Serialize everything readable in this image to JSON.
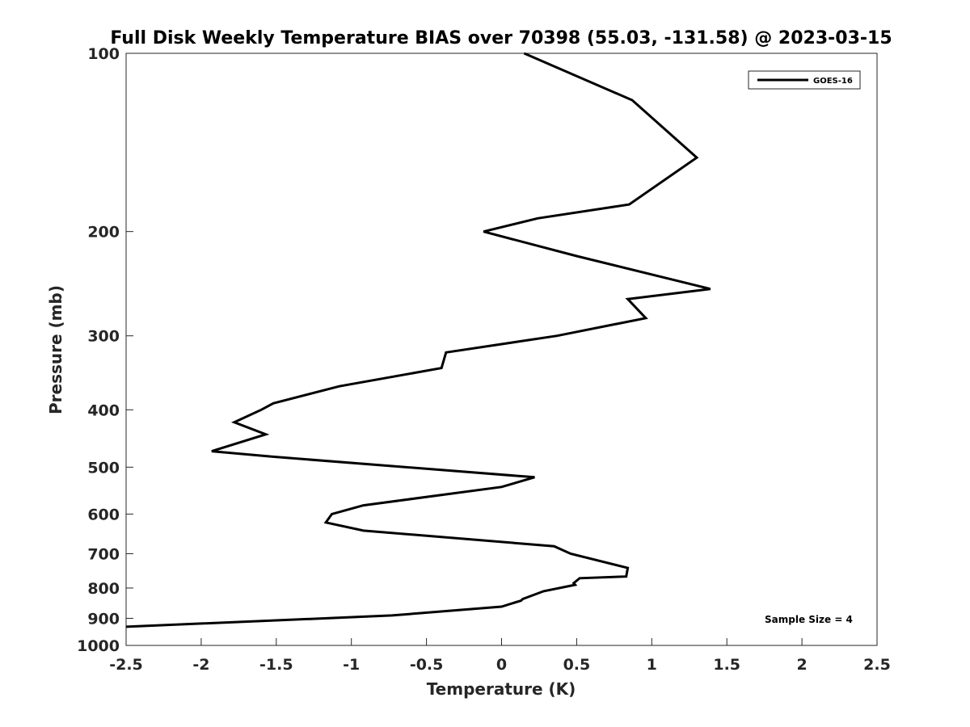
{
  "chart_data": {
    "type": "line",
    "title": "Full Disk Weekly Temperature BIAS over 70398 (55.03, -131.58) @ 2023-03-15",
    "xlabel": "Temperature (K)",
    "ylabel": "Pressure (mb)",
    "xlim": [
      -2.5,
      2.5
    ],
    "ylim": [
      100,
      1000
    ],
    "y_scale": "log",
    "y_reversed": true,
    "x_ticks": [
      -2.5,
      -2,
      -1.5,
      -1,
      -0.5,
      0,
      0.5,
      1,
      1.5,
      2,
      2.5
    ],
    "x_tick_labels": [
      "-2.5",
      "-2",
      "-1.5",
      "-1",
      "-0.5",
      "0",
      "0.5",
      "1",
      "1.5",
      "2",
      "2.5"
    ],
    "y_ticks": [
      100,
      200,
      300,
      400,
      500,
      600,
      700,
      800,
      900,
      1000
    ],
    "y_tick_labels": [
      "100",
      "200",
      "300",
      "400",
      "500",
      "600",
      "700",
      "800",
      "900",
      "1000"
    ],
    "grid": false,
    "legend_position": "top-right",
    "annotation": "Sample Size = 4",
    "series": [
      {
        "name": "GOES-16",
        "color": "#000000",
        "x": [
          0.15,
          0.87,
          1.3,
          0.85,
          0.24,
          -0.12,
          0.5,
          1.39,
          0.84,
          0.96,
          0.37,
          -0.37,
          -0.4,
          -1.08,
          -1.52,
          -1.6,
          -1.78,
          -1.57,
          -1.93,
          -1.53,
          0.22,
          0.0,
          -0.92,
          -1.13,
          -1.17,
          -0.92,
          0.35,
          0.46,
          0.84,
          0.83,
          0.52,
          0.48,
          0.49,
          0.28,
          0.14,
          0.13,
          0.0,
          -0.73,
          -2.5
        ],
        "y": [
          100,
          120,
          150,
          180,
          190,
          200,
          220,
          250,
          260,
          280,
          300,
          320,
          340,
          365,
          390,
          400,
          420,
          440,
          470,
          480,
          520,
          540,
          580,
          600,
          620,
          640,
          680,
          700,
          740,
          765,
          770,
          785,
          790,
          810,
          835,
          840,
          860,
          890,
          930
        ]
      }
    ]
  }
}
